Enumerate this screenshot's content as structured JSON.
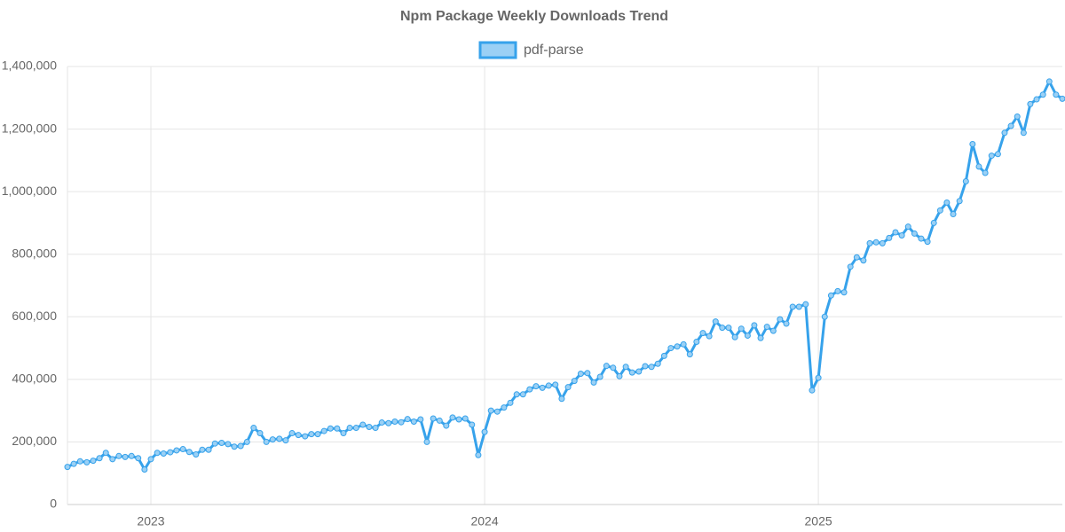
{
  "chart_data": {
    "type": "line",
    "title": "Npm Package Weekly Downloads Trend",
    "series": [
      {
        "name": "pdf-parse",
        "color": "#36a2eb",
        "fill": "#9ad0f5",
        "x": [
          2022.75,
          2022.769,
          2022.788,
          2022.808,
          2022.827,
          2022.846,
          2022.865,
          2022.885,
          2022.904,
          2022.923,
          2022.942,
          2022.962,
          2022.981,
          2023,
          2023.019,
          2023.038,
          2023.058,
          2023.077,
          2023.096,
          2023.115,
          2023.135,
          2023.154,
          2023.173,
          2023.192,
          2023.212,
          2023.231,
          2023.25,
          2023.269,
          2023.288,
          2023.308,
          2023.327,
          2023.346,
          2023.365,
          2023.385,
          2023.404,
          2023.423,
          2023.442,
          2023.462,
          2023.481,
          2023.5,
          2023.519,
          2023.538,
          2023.558,
          2023.577,
          2023.596,
          2023.615,
          2023.635,
          2023.654,
          2023.673,
          2023.692,
          2023.712,
          2023.731,
          2023.75,
          2023.769,
          2023.788,
          2023.808,
          2023.827,
          2023.846,
          2023.865,
          2023.885,
          2023.904,
          2023.923,
          2023.942,
          2023.962,
          2023.981,
          2024,
          2024.019,
          2024.038,
          2024.058,
          2024.077,
          2024.096,
          2024.115,
          2024.135,
          2024.154,
          2024.173,
          2024.192,
          2024.212,
          2024.231,
          2024.25,
          2024.269,
          2024.288,
          2024.308,
          2024.327,
          2024.346,
          2024.365,
          2024.385,
          2024.404,
          2024.423,
          2024.442,
          2024.462,
          2024.481,
          2024.5,
          2024.519,
          2024.538,
          2024.558,
          2024.577,
          2024.596,
          2024.615,
          2024.635,
          2024.654,
          2024.673,
          2024.692,
          2024.712,
          2024.731,
          2024.75,
          2024.769,
          2024.788,
          2024.808,
          2024.827,
          2024.846,
          2024.865,
          2024.885,
          2024.904,
          2024.923,
          2024.942,
          2024.962,
          2024.981,
          2025,
          2025.019,
          2025.038,
          2025.058,
          2025.077,
          2025.096,
          2025.115,
          2025.135,
          2025.154,
          2025.173,
          2025.192,
          2025.212,
          2025.231,
          2025.25,
          2025.269,
          2025.288,
          2025.308,
          2025.327,
          2025.346,
          2025.365,
          2025.385,
          2025.404,
          2025.423,
          2025.442,
          2025.462,
          2025.481,
          2025.5,
          2025.519,
          2025.538,
          2025.558,
          2025.577,
          2025.596,
          2025.615,
          2025.635,
          2025.654,
          2025.673,
          2025.692,
          2025.712,
          2025.731
        ],
        "values": [
          120000,
          130000,
          138000,
          135000,
          140000,
          148000,
          165000,
          145000,
          155000,
          152000,
          155000,
          148000,
          112000,
          145000,
          165000,
          163000,
          167000,
          173000,
          177000,
          168000,
          160000,
          175000,
          175000,
          195000,
          197000,
          193000,
          185000,
          187000,
          200000,
          245000,
          228000,
          200000,
          208000,
          210000,
          205000,
          228000,
          222000,
          218000,
          225000,
          225000,
          235000,
          243000,
          243000,
          228000,
          245000,
          245000,
          255000,
          248000,
          245000,
          262000,
          260000,
          265000,
          263000,
          273000,
          265000,
          272000,
          200000,
          275000,
          268000,
          252000,
          278000,
          272000,
          275000,
          255000,
          158000,
          232000,
          300000,
          297000,
          310000,
          325000,
          352000,
          352000,
          368000,
          378000,
          373000,
          380000,
          383000,
          338000,
          375000,
          395000,
          418000,
          420000,
          390000,
          408000,
          443000,
          437000,
          410000,
          440000,
          422000,
          425000,
          442000,
          440000,
          450000,
          475000,
          500000,
          505000,
          512000,
          480000,
          520000,
          548000,
          538000,
          585000,
          565000,
          565000,
          535000,
          562000,
          540000,
          573000,
          532000,
          568000,
          555000,
          592000,
          578000,
          632000,
          632000,
          640000,
          365000,
          405000,
          600000,
          668000,
          682000,
          678000,
          760000,
          790000,
          780000,
          835000,
          838000,
          835000,
          852000,
          870000,
          860000,
          888000,
          866000,
          850000,
          840000,
          900000,
          940000,
          965000,
          928000,
          970000,
          1033000,
          1152000,
          1080000,
          1060000,
          1115000,
          1120000,
          1188000,
          1210000,
          1240000,
          1188000,
          1280000,
          1295000,
          1310000,
          1352000,
          1310000,
          1297000
        ]
      }
    ],
    "xlim": [
      2022.75,
      2025.731
    ],
    "xticks": [
      2023,
      2024,
      2025
    ],
    "ylim": [
      0,
      1400000
    ],
    "yticks": [
      0,
      {
        "value": 200000,
        "label": "200,000"
      },
      {
        "value": 400000,
        "label": "400,000"
      },
      {
        "value": 600000,
        "label": "600,000"
      },
      {
        "value": 800000,
        "label": "800,000"
      },
      {
        "value": 1000000,
        "label": "1,000,000"
      },
      {
        "value": 1200000,
        "label": "1,200,000"
      },
      {
        "value": 1400000,
        "label": "1,400,000"
      }
    ],
    "grid": true,
    "legend": "top"
  }
}
